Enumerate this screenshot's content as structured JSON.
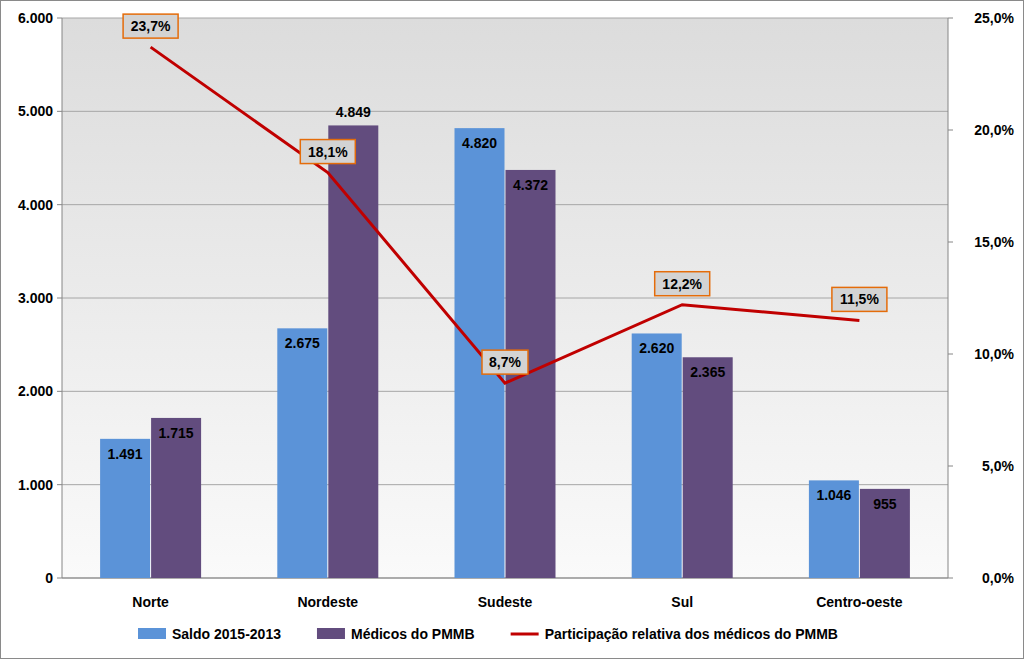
{
  "chart_data": {
    "type": "bar",
    "categories": [
      "Norte",
      "Nordeste",
      "Sudeste",
      "Sul",
      "Centro-oeste"
    ],
    "series": [
      {
        "name": "Saldo 2015-2013",
        "type": "bar",
        "color": "#5b93d8",
        "values": [
          1491,
          2675,
          4820,
          2620,
          1046
        ],
        "value_labels": [
          "1.491",
          "2.675",
          "4.820",
          "2.620",
          "1.046"
        ]
      },
      {
        "name": "Médicos do PMMB",
        "type": "bar",
        "color": "#624c7e",
        "values": [
          1715,
          4849,
          4372,
          2365,
          955
        ],
        "value_labels": [
          "1.715",
          "4.849",
          "4.372",
          "2.365",
          "955"
        ]
      },
      {
        "name": "Participação relativa dos médicos do PMMB",
        "type": "line",
        "axis": "y2",
        "color": "#c00000",
        "values": [
          23.7,
          18.1,
          8.7,
          12.2,
          11.5
        ],
        "value_labels": [
          "23,7%",
          "18,1%",
          "8,7%",
          "12,2%",
          "11,5%"
        ]
      }
    ],
    "ylim": [
      0,
      6000
    ],
    "yticks": [
      0,
      {
        "value": 1000,
        "label": "1.000"
      },
      {
        "value": 2000,
        "label": "2.000"
      },
      {
        "value": 3000,
        "label": "3.000"
      },
      {
        "value": 4000,
        "label": "4.000"
      },
      {
        "value": 5000,
        "label": "5.000"
      },
      {
        "value": 6000,
        "label": "6.000"
      }
    ],
    "y2lim": [
      0,
      25
    ],
    "y2ticks": [
      {
        "value": 0,
        "label": "0,0%"
      },
      {
        "value": 5,
        "label": "5,0%"
      },
      {
        "value": 10,
        "label": "10,0%"
      },
      {
        "value": 15,
        "label": "15,0%"
      },
      {
        "value": 20,
        "label": "20,0%"
      },
      {
        "value": 25,
        "label": "25,0%"
      }
    ],
    "grid": true,
    "data_labels": true,
    "legend": "bottom"
  }
}
